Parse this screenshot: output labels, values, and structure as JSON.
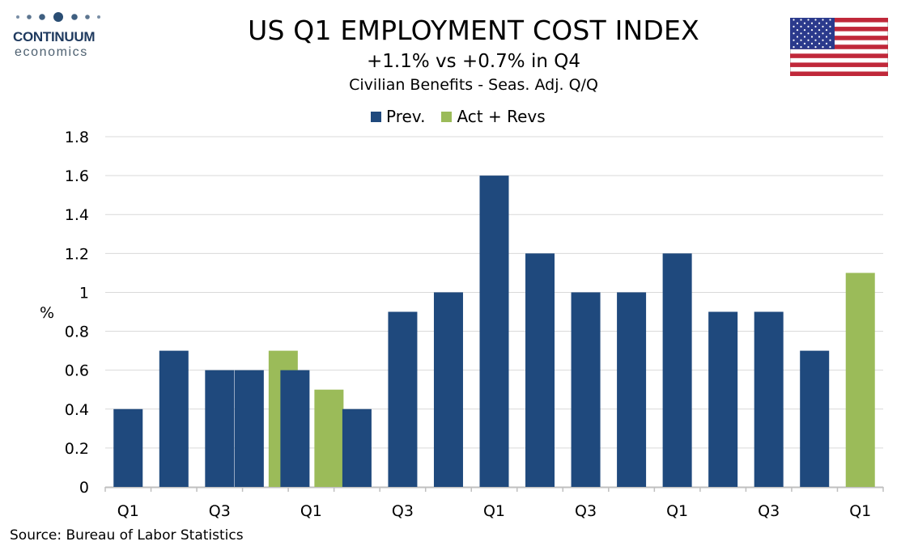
{
  "logo": {
    "name": "CONTINUUM",
    "sub": "economics"
  },
  "header": {
    "title": "US Q1 EMPLOYMENT COST INDEX",
    "subtitle": "+1.1% vs +0.7% in Q4",
    "subtitle2": "Civilian Benefits - Seas. Adj. Q/Q"
  },
  "flag_icon": "us-flag",
  "source": "Source: Bureau of Labor Statistics",
  "colors": {
    "prev": "#1f497d",
    "act": "#9bbb59",
    "grid": "#d9d9d9",
    "axis": "#bfbfbf"
  },
  "chart_data": {
    "type": "bar",
    "title": "US Q1 EMPLOYMENT COST INDEX",
    "subtitle": "+1.1% vs +0.7% in Q4",
    "ylabel": "%",
    "xlabel": "",
    "ylim": [
      0,
      1.8
    ],
    "yticks": [
      "0",
      "0.2",
      "0.4",
      "0.6",
      "0.8",
      "1",
      "1.2",
      "1.4",
      "1.6",
      "1.8"
    ],
    "grid": true,
    "legend_position": "top-center",
    "categories": [
      "Q1",
      "",
      "Q3",
      "",
      "Q1",
      "",
      "Q3",
      "",
      "Q1",
      "",
      "Q3",
      "",
      "Q1",
      "",
      "Q3",
      "",
      "Q1"
    ],
    "series": [
      {
        "name": "Prev.",
        "color": "#1f497d",
        "values": [
          0.4,
          0.7,
          0.6,
          0.6,
          0.6,
          0.4,
          0.9,
          1.0,
          1.6,
          1.2,
          1.0,
          1.0,
          1.2,
          0.9,
          0.9,
          0.7,
          null
        ]
      },
      {
        "name": "Act + Revs",
        "color": "#9bbb59",
        "values": [
          null,
          null,
          null,
          0.7,
          0.5,
          null,
          null,
          null,
          null,
          null,
          null,
          null,
          null,
          null,
          null,
          null,
          1.1
        ]
      }
    ]
  }
}
